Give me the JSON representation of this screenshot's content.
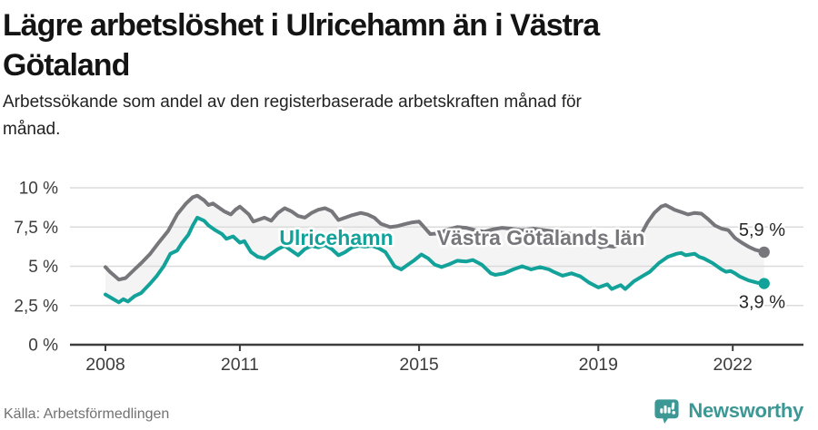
{
  "header": {
    "title": "Lägre arbetslöshet i Ulricehamn än i Västra\nGötaland",
    "subtitle": "Arbetssökande som andel av den registerbaserade arbetskraften månad för\nmånad."
  },
  "footer": {
    "source": "Källa: Arbetsförmedlingen",
    "brand": "Newsworthy"
  },
  "colors": {
    "ulricehamn": "#12a29a",
    "vastra_gotaland": "#76767b",
    "band_fill": "#f4f4f4",
    "gridline": "#dbdbdb",
    "axis": "#3d3d3d",
    "tick_text": "#3c3c3c",
    "end_label_text": "#262626",
    "brand_teal": "#3b9894"
  },
  "chart_data": {
    "type": "line",
    "title": "Lägre arbetslöshet i Ulricehamn än i Västra Götaland",
    "xlabel": "",
    "ylabel": "",
    "grid": true,
    "legend_position": "inline-labels",
    "xlim": [
      2007.2,
      2023.5
    ],
    "ylim": [
      0,
      10
    ],
    "x_ticks": [
      {
        "v": 2008,
        "label": "2008"
      },
      {
        "v": 2011,
        "label": "2011"
      },
      {
        "v": 2015,
        "label": "2015"
      },
      {
        "v": 2019,
        "label": "2019"
      },
      {
        "v": 2022,
        "label": "2022"
      }
    ],
    "y_ticks": [
      {
        "v": 0,
        "label": "0 %"
      },
      {
        "v": 2.5,
        "label": "2,5 %"
      },
      {
        "v": 5,
        "label": "5 %"
      },
      {
        "v": 7.5,
        "label": "7,5 %"
      },
      {
        "v": 10,
        "label": "10 %"
      }
    ],
    "series": [
      {
        "name": "Västra Götalands län",
        "color": "#76767b",
        "end_label": "5,9 %",
        "end_value": 5.9,
        "points": [
          [
            2008.0,
            4.95
          ],
          [
            2008.1,
            4.65
          ],
          [
            2008.3,
            4.15
          ],
          [
            2008.45,
            4.25
          ],
          [
            2008.65,
            4.8
          ],
          [
            2008.8,
            5.2
          ],
          [
            2009.0,
            5.8
          ],
          [
            2009.2,
            6.55
          ],
          [
            2009.4,
            7.25
          ],
          [
            2009.6,
            8.3
          ],
          [
            2009.8,
            9.0
          ],
          [
            2009.95,
            9.4
          ],
          [
            2010.05,
            9.5
          ],
          [
            2010.2,
            9.2
          ],
          [
            2010.3,
            8.9
          ],
          [
            2010.4,
            9.0
          ],
          [
            2010.5,
            8.8
          ],
          [
            2010.65,
            8.5
          ],
          [
            2010.8,
            8.3
          ],
          [
            2010.9,
            8.6
          ],
          [
            2011.0,
            8.8
          ],
          [
            2011.2,
            8.3
          ],
          [
            2011.3,
            7.85
          ],
          [
            2011.45,
            8.0
          ],
          [
            2011.55,
            8.1
          ],
          [
            2011.7,
            7.9
          ],
          [
            2011.85,
            8.4
          ],
          [
            2012.0,
            8.7
          ],
          [
            2012.15,
            8.5
          ],
          [
            2012.3,
            8.2
          ],
          [
            2012.45,
            8.1
          ],
          [
            2012.6,
            8.4
          ],
          [
            2012.75,
            8.6
          ],
          [
            2012.9,
            8.7
          ],
          [
            2013.05,
            8.5
          ],
          [
            2013.2,
            7.95
          ],
          [
            2013.35,
            8.1
          ],
          [
            2013.5,
            8.25
          ],
          [
            2013.7,
            8.4
          ],
          [
            2013.85,
            8.3
          ],
          [
            2014.0,
            8.1
          ],
          [
            2014.15,
            7.7
          ],
          [
            2014.35,
            7.5
          ],
          [
            2014.5,
            7.55
          ],
          [
            2014.7,
            7.7
          ],
          [
            2014.85,
            7.8
          ],
          [
            2015.0,
            7.85
          ],
          [
            2015.25,
            7.05
          ],
          [
            2015.45,
            7.1
          ],
          [
            2015.65,
            7.35
          ],
          [
            2015.85,
            7.5
          ],
          [
            2016.05,
            7.45
          ],
          [
            2016.25,
            7.3
          ],
          [
            2016.45,
            7.2
          ],
          [
            2016.65,
            7.35
          ],
          [
            2016.85,
            7.45
          ],
          [
            2017.05,
            7.4
          ],
          [
            2017.3,
            7.3
          ],
          [
            2017.55,
            7.4
          ],
          [
            2017.8,
            7.3
          ],
          [
            2018.05,
            7.2
          ],
          [
            2018.3,
            7.1
          ],
          [
            2018.55,
            7.0
          ],
          [
            2018.8,
            6.7
          ],
          [
            2019.05,
            6.2
          ],
          [
            2019.2,
            6.3
          ],
          [
            2019.35,
            6.25
          ],
          [
            2019.5,
            6.45
          ],
          [
            2019.65,
            6.6
          ],
          [
            2019.8,
            6.7
          ],
          [
            2019.95,
            7.0
          ],
          [
            2020.1,
            7.8
          ],
          [
            2020.25,
            8.4
          ],
          [
            2020.4,
            8.8
          ],
          [
            2020.5,
            8.9
          ],
          [
            2020.7,
            8.6
          ],
          [
            2020.85,
            8.45
          ],
          [
            2021.0,
            8.3
          ],
          [
            2021.15,
            8.4
          ],
          [
            2021.3,
            8.35
          ],
          [
            2021.45,
            8.0
          ],
          [
            2021.6,
            7.6
          ],
          [
            2021.75,
            7.4
          ],
          [
            2021.9,
            7.3
          ],
          [
            2022.05,
            6.8
          ],
          [
            2022.2,
            6.5
          ],
          [
            2022.35,
            6.25
          ],
          [
            2022.5,
            6.05
          ],
          [
            2022.7,
            5.9
          ]
        ]
      },
      {
        "name": "Ulricehamn",
        "color": "#12a29a",
        "end_label": "3,9 %",
        "end_value": 3.9,
        "points": [
          [
            2008.0,
            3.2
          ],
          [
            2008.15,
            2.95
          ],
          [
            2008.3,
            2.7
          ],
          [
            2008.4,
            2.9
          ],
          [
            2008.5,
            2.75
          ],
          [
            2008.65,
            3.1
          ],
          [
            2008.8,
            3.3
          ],
          [
            2009.0,
            3.9
          ],
          [
            2009.15,
            4.4
          ],
          [
            2009.3,
            5.0
          ],
          [
            2009.45,
            5.8
          ],
          [
            2009.6,
            6.0
          ],
          [
            2009.7,
            6.45
          ],
          [
            2009.85,
            7.0
          ],
          [
            2009.95,
            7.6
          ],
          [
            2010.05,
            8.1
          ],
          [
            2010.2,
            7.9
          ],
          [
            2010.3,
            7.6
          ],
          [
            2010.45,
            7.3
          ],
          [
            2010.6,
            7.05
          ],
          [
            2010.7,
            6.75
          ],
          [
            2010.85,
            6.9
          ],
          [
            2011.0,
            6.5
          ],
          [
            2011.1,
            6.6
          ],
          [
            2011.25,
            5.9
          ],
          [
            2011.4,
            5.6
          ],
          [
            2011.55,
            5.5
          ],
          [
            2011.7,
            5.8
          ],
          [
            2011.85,
            6.1
          ],
          [
            2012.0,
            6.3
          ],
          [
            2012.15,
            6.0
          ],
          [
            2012.3,
            5.7
          ],
          [
            2012.45,
            6.1
          ],
          [
            2012.6,
            6.3
          ],
          [
            2012.75,
            6.2
          ],
          [
            2012.9,
            6.35
          ],
          [
            2013.05,
            6.1
          ],
          [
            2013.2,
            5.7
          ],
          [
            2013.35,
            5.9
          ],
          [
            2013.5,
            6.2
          ],
          [
            2013.65,
            6.3
          ],
          [
            2013.8,
            6.25
          ],
          [
            2013.95,
            6.3
          ],
          [
            2014.1,
            6.15
          ],
          [
            2014.25,
            5.9
          ],
          [
            2014.45,
            5.0
          ],
          [
            2014.6,
            4.8
          ],
          [
            2014.75,
            5.1
          ],
          [
            2014.9,
            5.4
          ],
          [
            2015.05,
            5.75
          ],
          [
            2015.2,
            5.5
          ],
          [
            2015.35,
            5.1
          ],
          [
            2015.5,
            4.95
          ],
          [
            2015.65,
            5.1
          ],
          [
            2015.85,
            5.35
          ],
          [
            2016.05,
            5.3
          ],
          [
            2016.2,
            5.4
          ],
          [
            2016.4,
            5.1
          ],
          [
            2016.6,
            4.55
          ],
          [
            2016.7,
            4.45
          ],
          [
            2016.9,
            4.55
          ],
          [
            2017.1,
            4.8
          ],
          [
            2017.3,
            5.0
          ],
          [
            2017.5,
            4.8
          ],
          [
            2017.7,
            4.95
          ],
          [
            2017.9,
            4.8
          ],
          [
            2018.0,
            4.65
          ],
          [
            2018.2,
            4.4
          ],
          [
            2018.4,
            4.55
          ],
          [
            2018.6,
            4.35
          ],
          [
            2018.8,
            3.95
          ],
          [
            2019.0,
            3.65
          ],
          [
            2019.2,
            3.85
          ],
          [
            2019.3,
            3.55
          ],
          [
            2019.5,
            3.8
          ],
          [
            2019.6,
            3.55
          ],
          [
            2019.8,
            4.05
          ],
          [
            2020.0,
            4.4
          ],
          [
            2020.15,
            4.65
          ],
          [
            2020.35,
            5.2
          ],
          [
            2020.55,
            5.6
          ],
          [
            2020.75,
            5.8
          ],
          [
            2020.85,
            5.85
          ],
          [
            2020.95,
            5.7
          ],
          [
            2021.15,
            5.8
          ],
          [
            2021.25,
            5.6
          ],
          [
            2021.35,
            5.5
          ],
          [
            2021.55,
            5.2
          ],
          [
            2021.75,
            4.8
          ],
          [
            2021.85,
            4.65
          ],
          [
            2021.95,
            4.7
          ],
          [
            2022.05,
            4.55
          ],
          [
            2022.15,
            4.35
          ],
          [
            2022.35,
            4.1
          ],
          [
            2022.55,
            3.95
          ],
          [
            2022.7,
            3.9
          ]
        ]
      }
    ]
  }
}
